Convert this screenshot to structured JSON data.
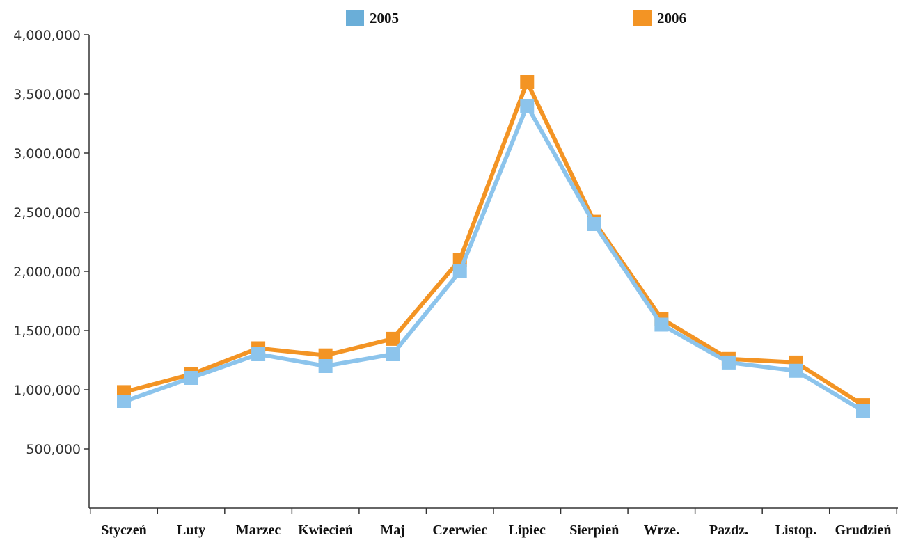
{
  "chart_data": {
    "type": "line",
    "categories": [
      "Styczeń",
      "Luty",
      "Marzec",
      "Kwiecień",
      "Maj",
      "Czerwiec",
      "Lipiec",
      "Sierpień",
      "Wrze.",
      "Pazdz.",
      "Listop.",
      "Grudzień"
    ],
    "series": [
      {
        "name": "2005",
        "color": "#8cc4ec",
        "legend_color": "#6aaed8",
        "values": [
          900000,
          1100000,
          1300000,
          1200000,
          1300000,
          2000000,
          3400000,
          2400000,
          1550000,
          1230000,
          1160000,
          820000
        ]
      },
      {
        "name": "2006",
        "color": "#f39424",
        "legend_color": "#f39424",
        "values": [
          980000,
          1130000,
          1350000,
          1290000,
          1430000,
          2100000,
          3600000,
          2420000,
          1600000,
          1260000,
          1230000,
          870000
        ]
      }
    ],
    "yticks": [
      {
        "value": 500000,
        "label": "500,000"
      },
      {
        "value": 1000000,
        "label": "1,000,000"
      },
      {
        "value": 1500000,
        "label": "1,500,000"
      },
      {
        "value": 2000000,
        "label": "2,000,000"
      },
      {
        "value": 2500000,
        "label": "2,500,000"
      },
      {
        "value": 3000000,
        "label": "3,000,000"
      },
      {
        "value": 3500000,
        "label": "3,500,000"
      },
      {
        "value": 4000000,
        "label": "4,000,000"
      }
    ],
    "ylim": [
      0,
      4000000
    ],
    "grid": false,
    "legend_position": "top"
  }
}
